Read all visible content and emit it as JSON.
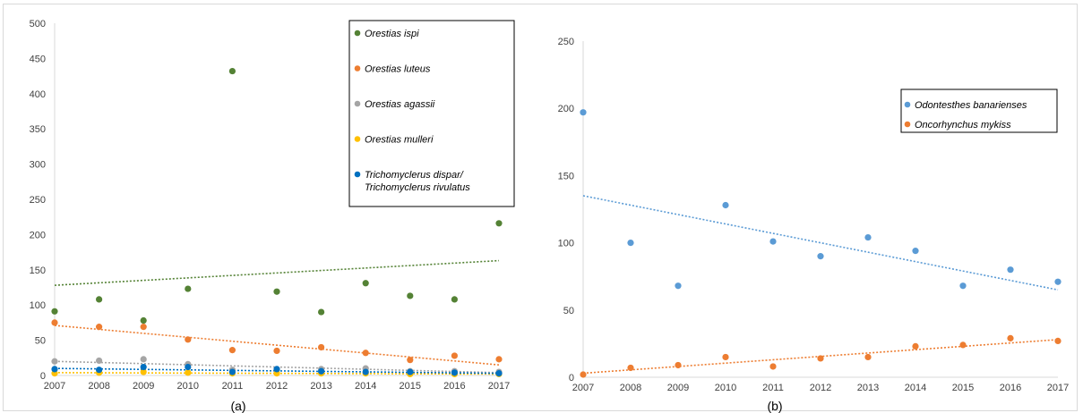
{
  "chart_data": [
    {
      "panel_label": "(a)",
      "type": "scatter",
      "x": [
        2007,
        2008,
        2009,
        2010,
        2011,
        2012,
        2013,
        2014,
        2015,
        2016,
        2017
      ],
      "xlim": [
        2007,
        2017
      ],
      "ylim": [
        0,
        500
      ],
      "yticks": [
        0,
        50,
        100,
        150,
        200,
        250,
        300,
        350,
        400,
        450,
        500
      ],
      "grid": false,
      "legend_position": "top-right",
      "trendlines": "linear, dotted",
      "series": [
        {
          "name": "Orestias ispi",
          "color": "#548235",
          "values": [
            91,
            108,
            78,
            123,
            432,
            119,
            90,
            131,
            113,
            108,
            216
          ],
          "trend": [
            128,
            163
          ]
        },
        {
          "name": "Orestias luteus",
          "color": "#ED7D31",
          "values": [
            75,
            69,
            69,
            51,
            36,
            35,
            40,
            32,
            22,
            28,
            23
          ],
          "trend": [
            71,
            15
          ]
        },
        {
          "name": "Orestias agassii",
          "color": "#A5A5A5",
          "values": [
            20,
            21,
            23,
            16,
            8,
            8,
            9,
            10,
            6,
            6,
            5
          ],
          "trend": [
            20,
            4
          ]
        },
        {
          "name": "Orestias mulleri",
          "color": "#FFC000",
          "values": [
            3,
            4,
            5,
            4,
            3,
            3,
            3,
            3,
            2,
            2,
            2
          ],
          "trend": [
            4,
            2
          ]
        },
        {
          "name": "Trichomyclerus dispar/\nTrichomyclerus rivulatus",
          "legend_lines": [
            "Trichomyclerus dispar/",
            "Trichomyclerus rivulatus"
          ],
          "color": "#0070C0",
          "values": [
            9,
            8,
            12,
            12,
            5,
            9,
            6,
            5,
            5,
            4,
            3
          ],
          "trend": [
            10,
            3
          ]
        }
      ]
    },
    {
      "panel_label": "(b)",
      "type": "scatter",
      "x": [
        2007,
        2008,
        2009,
        2010,
        2011,
        2012,
        2013,
        2014,
        2015,
        2016,
        2017
      ],
      "xlim": [
        2007,
        2017
      ],
      "ylim": [
        0,
        250
      ],
      "yticks": [
        0,
        50,
        100,
        150,
        200,
        250
      ],
      "grid": false,
      "legend_position": "top-right",
      "trendlines": "linear, dotted",
      "series": [
        {
          "name": "Odontesthes banarienses",
          "color": "#5B9BD5",
          "values": [
            197,
            100,
            68,
            128,
            101,
            90,
            104,
            94,
            68,
            80,
            71
          ],
          "trend": [
            135,
            65
          ]
        },
        {
          "name": "Oncorhynchus mykiss",
          "color": "#ED7D31",
          "values": [
            2,
            7,
            9,
            15,
            8,
            14,
            15,
            23,
            24,
            29,
            27
          ],
          "trend": [
            3,
            28
          ]
        }
      ]
    }
  ]
}
